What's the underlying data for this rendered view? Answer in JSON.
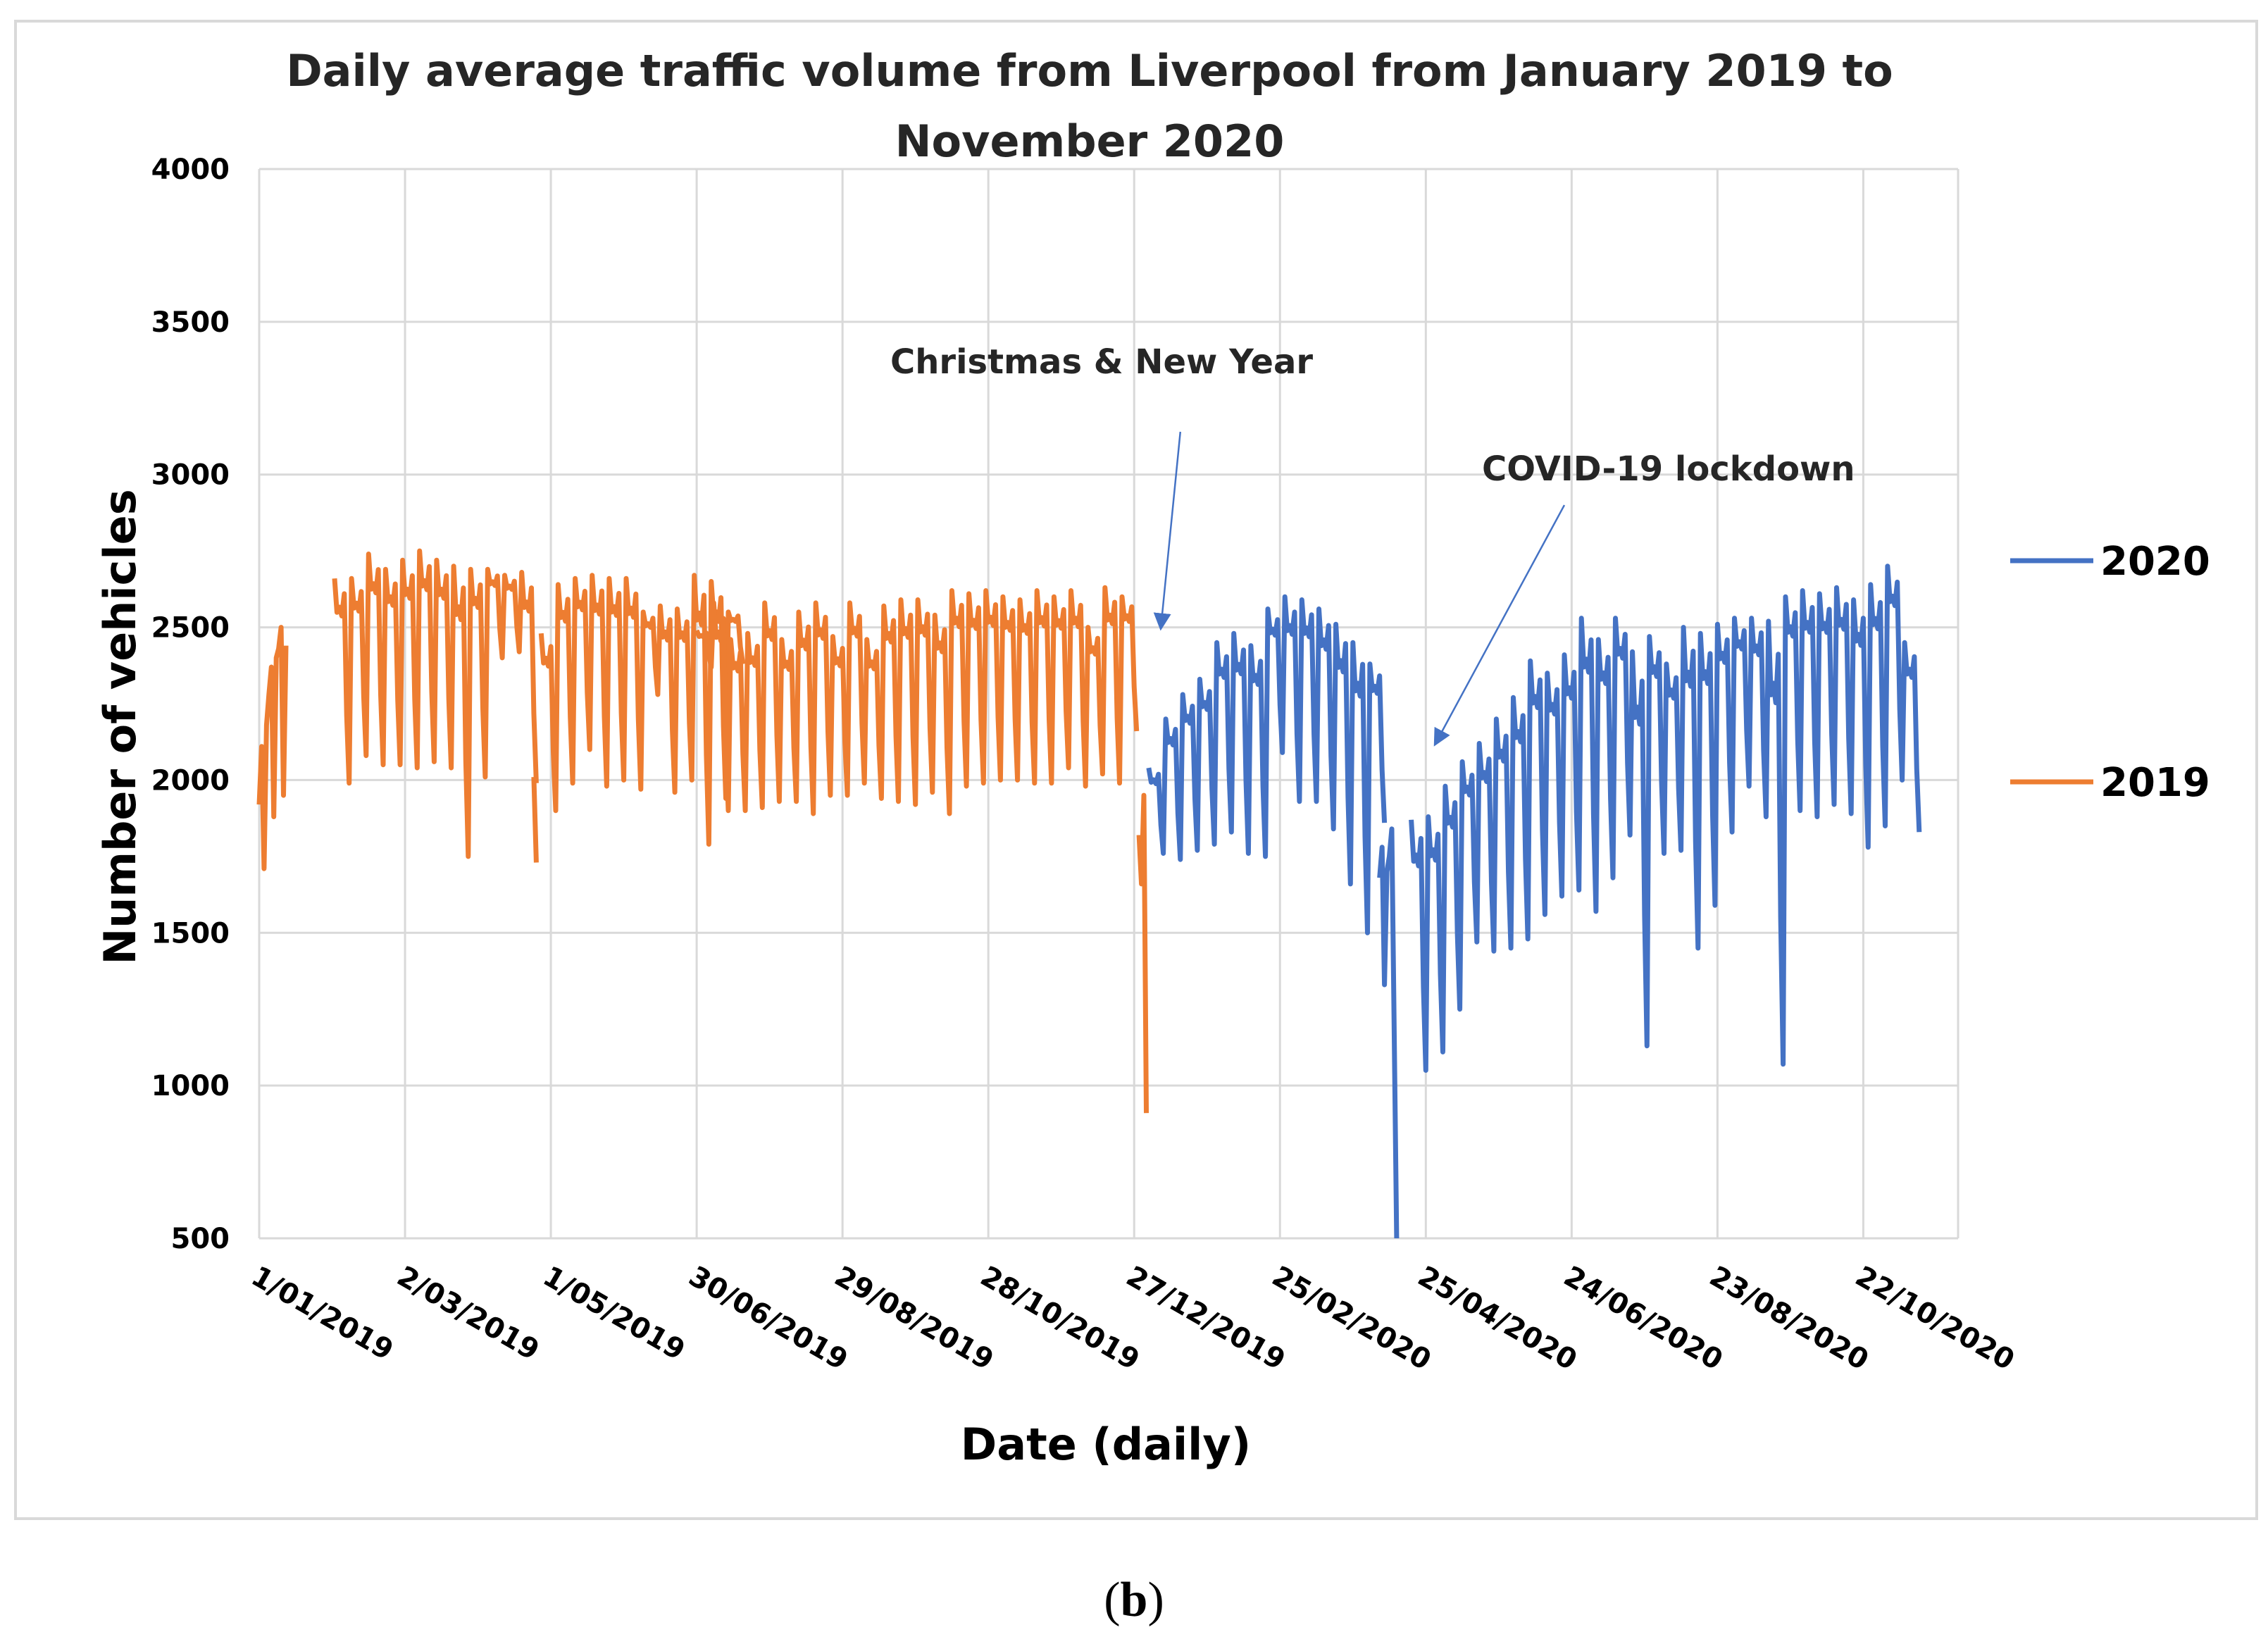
{
  "caption": {
    "open": "(",
    "letter": "b",
    "close": ")"
  },
  "chart_data": {
    "type": "line",
    "title_lines": [
      "Daily average traffic volume from Liverpool from January 2019 to",
      "November 2020"
    ],
    "xlabel": "Date (daily)",
    "ylabel": "Number of vehicles",
    "ylim": [
      500,
      4000
    ],
    "yticks": [
      500,
      1000,
      1500,
      2000,
      2500,
      3000,
      3500,
      4000
    ],
    "xlim_days": [
      0,
      699
    ],
    "xtick_labels": [
      "1/01/2019",
      "2/03/2019",
      "1/05/2019",
      "30/06/2019",
      "29/08/2019",
      "28/10/2019",
      "27/12/2019",
      "25/02/2020",
      "25/04/2020",
      "24/06/2020",
      "23/08/2020",
      "22/10/2020"
    ],
    "xtick_days": [
      0,
      60,
      120,
      180,
      240,
      300,
      360,
      420,
      480,
      540,
      600,
      660
    ],
    "grid": true,
    "legend_position": "right",
    "series": [
      {
        "name": "2019",
        "color": "#ED7D31",
        "start_day": 0,
        "segments": [
          {
            "start": 0,
            "values": [
              1920,
              2110,
              1710,
              2180,
              2280,
              2370,
              1880,
              2400,
              2430,
              2500,
              1950,
              2440
            ]
          },
          {
            "start": 31,
            "weekly_high": [
              2660,
              2660,
              2740,
              2690,
              2720,
              2750,
              2720,
              2700,
              2690,
              2690,
              2670,
              2680
            ],
            "weekly_low": [
              1990,
              2080,
              2050,
              2050,
              2040,
              2060,
              2040,
              1750,
              2010,
              2400,
              2420,
              1990
            ],
            "weeks": 12
          },
          {
            "start": 113,
            "values": [
              2010,
              1730
            ]
          },
          {
            "start": 116,
            "weekly_high": [
              2480,
              2640,
              2660,
              2670,
              2660,
              2660,
              2550,
              2570,
              2560,
              2670,
              2650,
              2550
            ],
            "weekly_low": [
              1900,
              1990,
              2100,
              1980,
              2000,
              1970,
              2280,
              1960,
              2000,
              1790,
              1940,
              2380
            ],
            "weeks": 12
          },
          {
            "start": 180,
            "weekly_high": [
              2490,
              2580,
              2460,
              2480,
              2580,
              2460,
              2550,
              2580,
              2470,
              2580,
              2460,
              2570,
              2590,
              2590,
              2540,
              2620,
              2610,
              2620,
              2600,
              2590,
              2620,
              2600,
              2620,
              2500,
              2630,
              2600
            ],
            "weekly_low": [
              2370,
              1900,
              1900,
              1910,
              1930,
              1930,
              1890,
              1950,
              1950,
              1990,
              1940,
              1930,
              1920,
              1960,
              1890,
              1980,
              1990,
              2000,
              2000,
              1990,
              1990,
              2040,
              1980,
              2020,
              1990,
              2160
            ],
            "weeks": 26
          },
          {
            "start": 362,
            "values": [
              1820,
              1660,
              1950,
              910
            ]
          }
        ]
      },
      {
        "name": "2020",
        "color": "#4472C4",
        "start_day": 365,
        "segments": [
          {
            "start": 366,
            "weekly_high": [
              2040,
              2200,
              2280,
              2330,
              2450,
              2480,
              2440,
              2560,
              2600,
              2590,
              2560,
              2510,
              2450,
              2380
            ],
            "weekly_low": [
              1760,
              1740,
              1770,
              1790,
              1830,
              1760,
              1750,
              2090,
              1930,
              1930,
              1840,
              1660,
              1500,
              1860
            ],
            "weeks": 14
          },
          {
            "start": 461,
            "values": [
              1680,
              1780,
              1330,
              1700,
              1750,
              1840,
              1160,
              500
            ]
          },
          {
            "start": 474,
            "weekly_high": [
              1870,
              1880,
              1980,
              2060,
              2120,
              2200,
              2270,
              2390,
              2350,
              2410,
              2530,
              2460,
              2530,
              2420,
              2470,
              2380,
              2500,
              2480,
              2510,
              2530,
              2530,
              2520,
              2600,
              2620,
              2610,
              2630,
              2590,
              2640,
              2700,
              2450
            ],
            "weekly_low": [
              1050,
              1110,
              1250,
              1470,
              1440,
              1450,
              1480,
              1560,
              1620,
              1640,
              1570,
              1680,
              1820,
              1130,
              1760,
              1770,
              1450,
              1590,
              1830,
              1980,
              1880,
              1070,
              1900,
              1880,
              1920,
              1890,
              1780,
              1850,
              2000,
              1830
            ],
            "weeks": 30
          }
        ]
      }
    ],
    "annotations": [
      {
        "text": "Christmas & New Year",
        "target_day": 371,
        "target_value": 2500,
        "from_day": 379,
        "from_value": 3140
      },
      {
        "text": "COVID-19 lockdown",
        "target_day": 484,
        "target_value": 2120,
        "from_day": 537,
        "from_value": 2900
      }
    ]
  }
}
